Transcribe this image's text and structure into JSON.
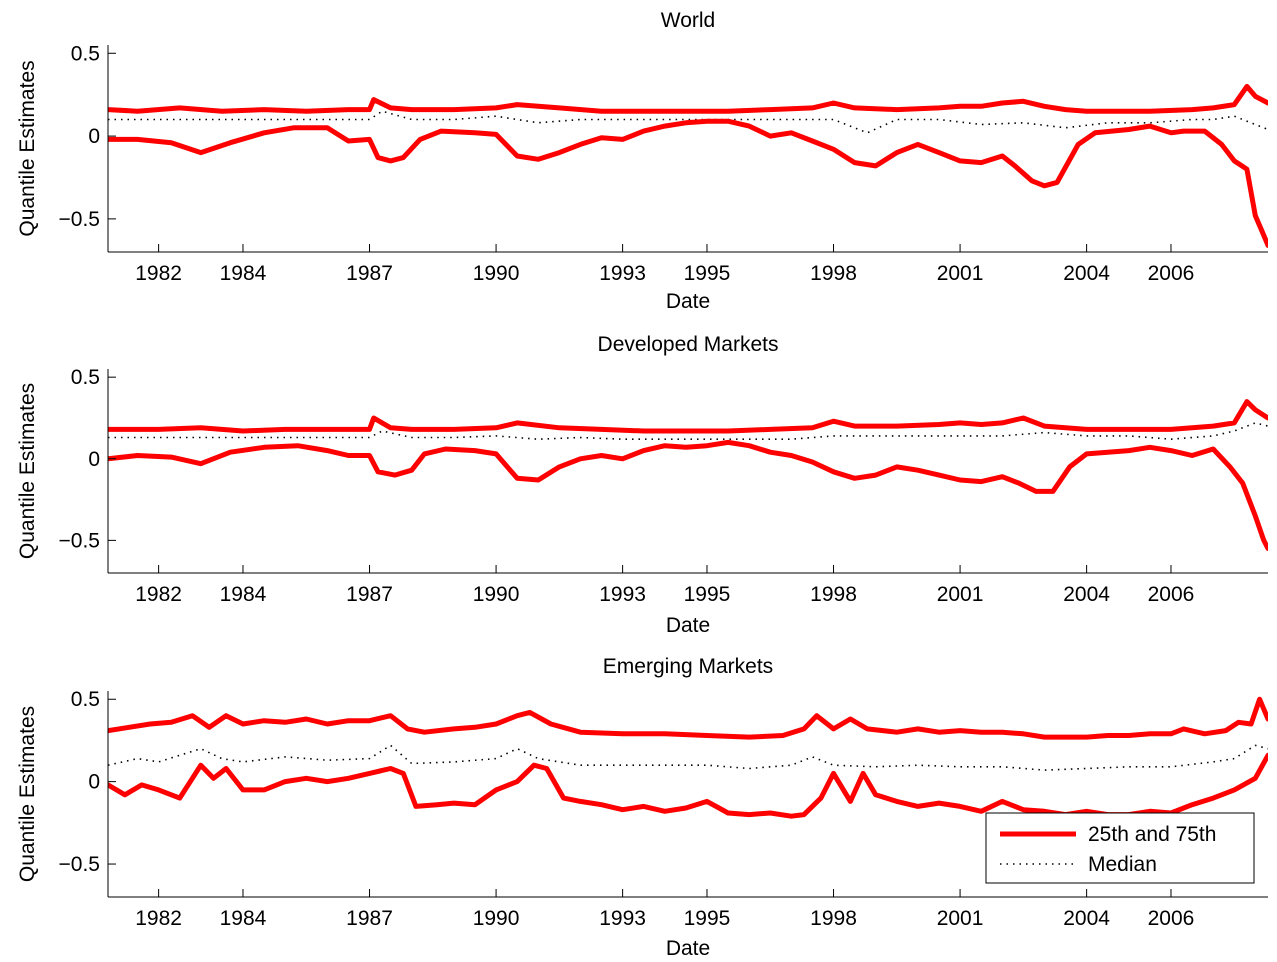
{
  "chart_data": [
    {
      "type": "line",
      "title": "World",
      "xlabel": "Date",
      "ylabel": "Quantile Estimates",
      "x_tick_labels": [
        "1982",
        "1984",
        "1987",
        "1990",
        "1993",
        "1995",
        "1998",
        "2001",
        "2004",
        "2006"
      ],
      "x_tick_dates": [
        1982.0,
        1984.0,
        1987.0,
        1990.0,
        1993.0,
        1995.0,
        1998.0,
        2001.0,
        2004.0,
        2006.0
      ],
      "xlim": [
        1980.8,
        2008.3
      ],
      "y_tick_labels": [
        "0.5",
        "0",
        "−0.5"
      ],
      "y_tick_values": [
        0.5,
        0,
        -0.5
      ],
      "ylim": [
        -0.7,
        0.55
      ],
      "grid": false,
      "series": [
        {
          "role": "upper",
          "style": "solid",
          "color": "#ff0000",
          "x": [
            1980.8,
            1981.5,
            1982.5,
            1983.5,
            1984.5,
            1985.5,
            1986.5,
            1987.0,
            1987.1,
            1987.5,
            1988.0,
            1989.0,
            1990.0,
            1990.5,
            1991.5,
            1992.5,
            1993.5,
            1994.5,
            1995.5,
            1996.5,
            1997.5,
            1998.0,
            1998.5,
            1999.5,
            2000.5,
            2001.0,
            2001.5,
            2002.0,
            2002.5,
            2003.0,
            2003.5,
            2004.0,
            2004.5,
            2005.5,
            2006.5,
            2007.0,
            2007.5,
            2007.8,
            2008.0,
            2008.3
          ],
          "y": [
            0.16,
            0.15,
            0.17,
            0.15,
            0.16,
            0.15,
            0.16,
            0.16,
            0.22,
            0.17,
            0.16,
            0.16,
            0.17,
            0.19,
            0.17,
            0.15,
            0.15,
            0.15,
            0.15,
            0.16,
            0.17,
            0.2,
            0.17,
            0.16,
            0.17,
            0.18,
            0.18,
            0.2,
            0.21,
            0.18,
            0.16,
            0.15,
            0.15,
            0.15,
            0.16,
            0.17,
            0.19,
            0.3,
            0.24,
            0.2
          ]
        },
        {
          "role": "median",
          "style": "dotted",
          "color": "#000000",
          "x": [
            1980.8,
            1982.0,
            1983.0,
            1984.0,
            1985.0,
            1986.0,
            1987.0,
            1987.3,
            1988.0,
            1989.0,
            1990.0,
            1991.0,
            1992.0,
            1993.0,
            1994.0,
            1995.0,
            1996.0,
            1997.0,
            1998.0,
            1998.8,
            1999.5,
            2000.5,
            2001.5,
            2002.5,
            2003.5,
            2004.5,
            2005.5,
            2006.5,
            2007.0,
            2007.5,
            2008.0,
            2008.3
          ],
          "y": [
            0.1,
            0.1,
            0.1,
            0.1,
            0.1,
            0.1,
            0.1,
            0.15,
            0.1,
            0.1,
            0.12,
            0.08,
            0.1,
            0.1,
            0.1,
            0.1,
            0.1,
            0.1,
            0.1,
            0.02,
            0.1,
            0.1,
            0.07,
            0.08,
            0.05,
            0.08,
            0.08,
            0.1,
            0.1,
            0.12,
            0.07,
            0.04
          ]
        },
        {
          "role": "lower",
          "style": "solid",
          "color": "#ff0000",
          "x": [
            1980.8,
            1981.5,
            1982.3,
            1983.0,
            1983.7,
            1984.5,
            1985.2,
            1986.0,
            1986.5,
            1987.0,
            1987.2,
            1987.5,
            1987.8,
            1988.2,
            1988.7,
            1989.5,
            1990.0,
            1990.5,
            1991.0,
            1991.5,
            1992.0,
            1992.5,
            1993.0,
            1993.5,
            1994.0,
            1994.5,
            1995.0,
            1995.5,
            1996.0,
            1996.5,
            1997.0,
            1997.5,
            1998.0,
            1998.5,
            1999.0,
            1999.5,
            2000.0,
            2000.5,
            2001.0,
            2001.5,
            2002.0,
            2002.3,
            2002.7,
            2003.0,
            2003.3,
            2003.8,
            2004.2,
            2005.0,
            2005.5,
            2006.0,
            2006.3,
            2006.8,
            2007.2,
            2007.5,
            2007.8,
            2008.0,
            2008.2,
            2008.3
          ],
          "y": [
            -0.02,
            -0.02,
            -0.04,
            -0.1,
            -0.04,
            0.02,
            0.05,
            0.05,
            -0.03,
            -0.02,
            -0.13,
            -0.15,
            -0.13,
            -0.02,
            0.03,
            0.02,
            0.01,
            -0.12,
            -0.14,
            -0.1,
            -0.05,
            -0.01,
            -0.02,
            0.03,
            0.06,
            0.08,
            0.09,
            0.09,
            0.06,
            0.0,
            0.02,
            -0.03,
            -0.08,
            -0.16,
            -0.18,
            -0.1,
            -0.05,
            -0.1,
            -0.15,
            -0.16,
            -0.12,
            -0.18,
            -0.27,
            -0.3,
            -0.28,
            -0.05,
            0.02,
            0.04,
            0.06,
            0.02,
            0.03,
            0.03,
            -0.05,
            -0.15,
            -0.2,
            -0.48,
            -0.6,
            -0.66
          ]
        }
      ]
    },
    {
      "type": "line",
      "title": "Developed Markets",
      "xlabel": "Date",
      "ylabel": "Quantile Estimates",
      "x_tick_labels": [
        "1982",
        "1984",
        "1987",
        "1990",
        "1993",
        "1995",
        "1998",
        "2001",
        "2004",
        "2006"
      ],
      "x_tick_dates": [
        1982.0,
        1984.0,
        1987.0,
        1990.0,
        1993.0,
        1995.0,
        1998.0,
        2001.0,
        2004.0,
        2006.0
      ],
      "xlim": [
        1980.8,
        2008.3
      ],
      "y_tick_labels": [
        "0.5",
        "0",
        "−0.5"
      ],
      "y_tick_values": [
        0.5,
        0,
        -0.5
      ],
      "ylim": [
        -0.7,
        0.55
      ],
      "grid": false,
      "series": [
        {
          "role": "upper",
          "style": "solid",
          "color": "#ff0000",
          "x": [
            1980.8,
            1982.0,
            1983.0,
            1984.0,
            1985.0,
            1986.0,
            1987.0,
            1987.1,
            1987.5,
            1988.0,
            1989.0,
            1990.0,
            1990.5,
            1991.5,
            1992.5,
            1993.5,
            1994.5,
            1995.5,
            1996.5,
            1997.5,
            1998.0,
            1998.5,
            1999.5,
            2000.5,
            2001.0,
            2001.5,
            2002.0,
            2002.5,
            2003.0,
            2003.5,
            2004.0,
            2005.0,
            2006.0,
            2006.5,
            2007.0,
            2007.5,
            2007.8,
            2008.0,
            2008.3
          ],
          "y": [
            0.18,
            0.18,
            0.19,
            0.17,
            0.18,
            0.18,
            0.18,
            0.25,
            0.19,
            0.18,
            0.18,
            0.19,
            0.22,
            0.19,
            0.18,
            0.17,
            0.17,
            0.17,
            0.18,
            0.19,
            0.23,
            0.2,
            0.2,
            0.21,
            0.22,
            0.21,
            0.22,
            0.25,
            0.2,
            0.19,
            0.18,
            0.18,
            0.18,
            0.19,
            0.2,
            0.22,
            0.35,
            0.3,
            0.25
          ]
        },
        {
          "role": "median",
          "style": "dotted",
          "color": "#000000",
          "x": [
            1980.8,
            1982.0,
            1983.0,
            1984.0,
            1985.0,
            1986.0,
            1987.0,
            1987.3,
            1988.0,
            1989.0,
            1990.0,
            1991.0,
            1992.0,
            1993.0,
            1994.0,
            1995.0,
            1996.0,
            1997.0,
            1998.0,
            1999.0,
            2000.0,
            2001.0,
            2002.0,
            2003.0,
            2004.0,
            2005.0,
            2006.0,
            2007.0,
            2007.5,
            2008.0,
            2008.3
          ],
          "y": [
            0.13,
            0.13,
            0.13,
            0.13,
            0.13,
            0.13,
            0.13,
            0.17,
            0.13,
            0.13,
            0.14,
            0.12,
            0.13,
            0.12,
            0.12,
            0.12,
            0.12,
            0.12,
            0.14,
            0.14,
            0.14,
            0.14,
            0.14,
            0.16,
            0.14,
            0.14,
            0.12,
            0.14,
            0.17,
            0.22,
            0.2
          ]
        },
        {
          "role": "lower",
          "style": "solid",
          "color": "#ff0000",
          "x": [
            1980.8,
            1981.5,
            1982.3,
            1983.0,
            1983.7,
            1984.5,
            1985.3,
            1986.0,
            1986.5,
            1987.0,
            1987.2,
            1987.6,
            1988.0,
            1988.3,
            1988.8,
            1989.5,
            1990.0,
            1990.5,
            1991.0,
            1991.5,
            1992.0,
            1992.5,
            1993.0,
            1993.5,
            1994.0,
            1994.5,
            1995.0,
            1995.5,
            1996.0,
            1996.5,
            1997.0,
            1997.5,
            1998.0,
            1998.5,
            1999.0,
            1999.5,
            2000.0,
            2000.5,
            2001.0,
            2001.5,
            2002.0,
            2002.4,
            2002.8,
            2003.2,
            2003.6,
            2004.0,
            2005.0,
            2005.5,
            2006.0,
            2006.5,
            2007.0,
            2007.4,
            2007.7,
            2008.0,
            2008.2,
            2008.3
          ],
          "y": [
            0.0,
            0.02,
            0.01,
            -0.03,
            0.04,
            0.07,
            0.08,
            0.05,
            0.02,
            0.02,
            -0.08,
            -0.1,
            -0.07,
            0.03,
            0.06,
            0.05,
            0.03,
            -0.12,
            -0.13,
            -0.05,
            0.0,
            0.02,
            0.0,
            0.05,
            0.08,
            0.07,
            0.08,
            0.1,
            0.08,
            0.04,
            0.02,
            -0.02,
            -0.08,
            -0.12,
            -0.1,
            -0.05,
            -0.07,
            -0.1,
            -0.13,
            -0.14,
            -0.11,
            -0.15,
            -0.2,
            -0.2,
            -0.05,
            0.03,
            0.05,
            0.07,
            0.05,
            0.02,
            0.06,
            -0.05,
            -0.15,
            -0.35,
            -0.5,
            -0.55
          ]
        }
      ]
    },
    {
      "type": "line",
      "title": "Emerging Markets",
      "xlabel": "Date",
      "ylabel": "Quantile Estimates",
      "x_tick_labels": [
        "1982",
        "1984",
        "1987",
        "1990",
        "1993",
        "1995",
        "1998",
        "2001",
        "2004",
        "2006"
      ],
      "x_tick_dates": [
        1982.0,
        1984.0,
        1987.0,
        1990.0,
        1993.0,
        1995.0,
        1998.0,
        2001.0,
        2004.0,
        2006.0
      ],
      "xlim": [
        1980.8,
        2008.3
      ],
      "y_tick_labels": [
        "0.5",
        "0",
        "−0.5"
      ],
      "y_tick_values": [
        0.5,
        0,
        -0.5
      ],
      "ylim": [
        -0.7,
        0.55
      ],
      "grid": false,
      "legend": {
        "placement": "bottom-right",
        "entries": [
          {
            "label": "25th and 75th",
            "style": "solid",
            "color": "#ff0000"
          },
          {
            "label": "Median",
            "style": "dotted",
            "color": "#000000"
          }
        ]
      },
      "series": [
        {
          "role": "upper",
          "style": "solid",
          "color": "#ff0000",
          "x": [
            1980.8,
            1981.3,
            1981.8,
            1982.3,
            1982.8,
            1983.2,
            1983.6,
            1984.0,
            1984.5,
            1985.0,
            1985.5,
            1986.0,
            1986.5,
            1987.0,
            1987.5,
            1987.9,
            1988.3,
            1989.0,
            1989.5,
            1990.0,
            1990.5,
            1990.8,
            1991.3,
            1992.0,
            1993.0,
            1994.0,
            1995.0,
            1996.0,
            1996.8,
            1997.3,
            1997.6,
            1998.0,
            1998.4,
            1998.8,
            1999.5,
            2000.0,
            2000.5,
            2001.0,
            2001.5,
            2002.0,
            2002.5,
            2003.0,
            2003.5,
            2004.0,
            2004.5,
            2005.0,
            2005.5,
            2006.0,
            2006.3,
            2006.8,
            2007.3,
            2007.6,
            2007.9,
            2008.1,
            2008.3
          ],
          "y": [
            0.31,
            0.33,
            0.35,
            0.36,
            0.4,
            0.33,
            0.4,
            0.35,
            0.37,
            0.36,
            0.38,
            0.35,
            0.37,
            0.37,
            0.4,
            0.32,
            0.3,
            0.32,
            0.33,
            0.35,
            0.4,
            0.42,
            0.35,
            0.3,
            0.29,
            0.29,
            0.28,
            0.27,
            0.28,
            0.32,
            0.4,
            0.32,
            0.38,
            0.32,
            0.3,
            0.32,
            0.3,
            0.31,
            0.3,
            0.3,
            0.29,
            0.27,
            0.27,
            0.27,
            0.28,
            0.28,
            0.29,
            0.29,
            0.32,
            0.29,
            0.31,
            0.36,
            0.35,
            0.5,
            0.38
          ]
        },
        {
          "role": "median",
          "style": "dotted",
          "color": "#000000",
          "x": [
            1980.8,
            1981.5,
            1982.0,
            1982.5,
            1983.0,
            1983.5,
            1984.0,
            1985.0,
            1986.0,
            1987.0,
            1987.5,
            1988.0,
            1989.0,
            1990.0,
            1990.5,
            1991.0,
            1992.0,
            1993.0,
            1994.0,
            1995.0,
            1996.0,
            1997.0,
            1997.5,
            1998.0,
            1999.0,
            2000.0,
            2001.0,
            2002.0,
            2003.0,
            2004.0,
            2005.0,
            2006.0,
            2007.0,
            2007.5,
            2008.0,
            2008.3
          ],
          "y": [
            0.1,
            0.14,
            0.12,
            0.16,
            0.2,
            0.14,
            0.12,
            0.15,
            0.13,
            0.14,
            0.22,
            0.11,
            0.12,
            0.14,
            0.2,
            0.14,
            0.1,
            0.1,
            0.1,
            0.1,
            0.08,
            0.1,
            0.15,
            0.1,
            0.09,
            0.1,
            0.09,
            0.09,
            0.07,
            0.08,
            0.09,
            0.09,
            0.12,
            0.14,
            0.22,
            0.2
          ]
        },
        {
          "role": "lower",
          "style": "solid",
          "color": "#ff0000",
          "x": [
            1980.8,
            1981.2,
            1981.6,
            1982.0,
            1982.5,
            1983.0,
            1983.3,
            1983.6,
            1984.0,
            1984.5,
            1985.0,
            1985.5,
            1986.0,
            1986.5,
            1987.0,
            1987.5,
            1987.8,
            1988.1,
            1988.6,
            1989.0,
            1989.5,
            1990.0,
            1990.5,
            1990.9,
            1991.2,
            1991.6,
            1992.0,
            1992.5,
            1993.0,
            1993.5,
            1994.0,
            1994.5,
            1995.0,
            1995.5,
            1996.0,
            1996.5,
            1997.0,
            1997.3,
            1997.7,
            1998.0,
            1998.4,
            1998.7,
            1999.0,
            1999.5,
            2000.0,
            2000.5,
            2001.0,
            2001.5,
            2002.0,
            2002.5,
            2003.0,
            2003.5,
            2004.0,
            2004.5,
            2005.0,
            2005.5,
            2006.0,
            2006.5,
            2007.0,
            2007.5,
            2008.0,
            2008.3
          ],
          "y": [
            -0.02,
            -0.08,
            -0.02,
            -0.05,
            -0.1,
            0.1,
            0.02,
            0.08,
            -0.05,
            -0.05,
            0.0,
            0.02,
            0.0,
            0.02,
            0.05,
            0.08,
            0.05,
            -0.15,
            -0.14,
            -0.13,
            -0.14,
            -0.05,
            0.0,
            0.1,
            0.08,
            -0.1,
            -0.12,
            -0.14,
            -0.17,
            -0.15,
            -0.18,
            -0.16,
            -0.12,
            -0.19,
            -0.2,
            -0.19,
            -0.21,
            -0.2,
            -0.1,
            0.05,
            -0.12,
            0.05,
            -0.08,
            -0.12,
            -0.15,
            -0.13,
            -0.15,
            -0.18,
            -0.12,
            -0.17,
            -0.18,
            -0.2,
            -0.18,
            -0.2,
            -0.2,
            -0.18,
            -0.19,
            -0.14,
            -0.1,
            -0.05,
            0.02,
            0.16
          ]
        }
      ]
    }
  ]
}
